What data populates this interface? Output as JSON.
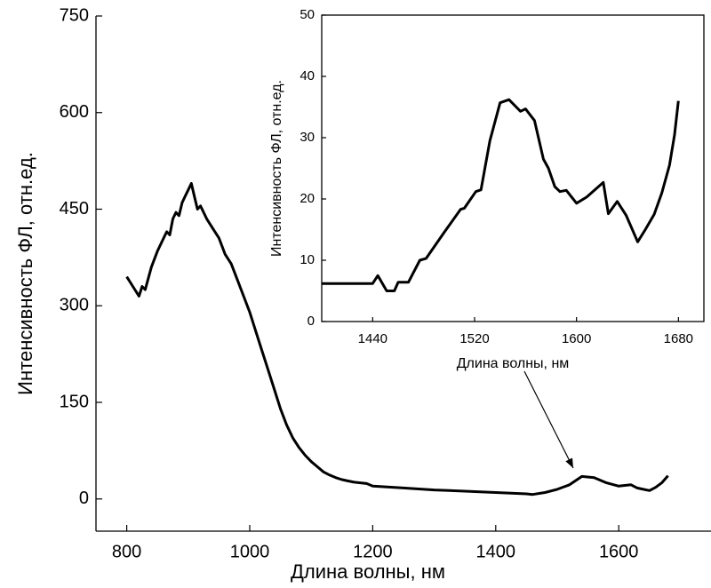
{
  "chart_data": [
    {
      "type": "line",
      "x_label": "Длина волны, нм",
      "y_label": "Интенсивность ФЛ, отн.ед.",
      "xlim": [
        750,
        1750
      ],
      "xticks": [
        800,
        1000,
        1200,
        1400,
        1600
      ],
      "ylim": [
        -50,
        750
      ],
      "yticks": [
        0,
        150,
        300,
        450,
        600,
        750
      ],
      "color": "#000000",
      "x": [
        800,
        810,
        820,
        825,
        830,
        840,
        850,
        860,
        865,
        870,
        875,
        880,
        885,
        890,
        895,
        900,
        905,
        910,
        915,
        920,
        930,
        940,
        950,
        960,
        970,
        980,
        990,
        1000,
        1010,
        1020,
        1030,
        1040,
        1050,
        1060,
        1070,
        1080,
        1090,
        1100,
        1110,
        1120,
        1130,
        1140,
        1150,
        1160,
        1170,
        1180,
        1190,
        1200,
        1250,
        1300,
        1350,
        1400,
        1450,
        1460,
        1480,
        1500,
        1520,
        1540,
        1560,
        1580,
        1600,
        1620,
        1630,
        1640,
        1650,
        1660,
        1670,
        1680
      ],
      "values": [
        345,
        330,
        315,
        330,
        325,
        360,
        385,
        405,
        415,
        410,
        435,
        445,
        440,
        460,
        470,
        480,
        490,
        470,
        450,
        455,
        435,
        420,
        405,
        380,
        365,
        340,
        315,
        290,
        260,
        230,
        200,
        170,
        140,
        115,
        95,
        80,
        68,
        58,
        50,
        42,
        37,
        33,
        30,
        28,
        26,
        25,
        24,
        20,
        17,
        14,
        12,
        10,
        8,
        7,
        10,
        15,
        22,
        35,
        33,
        25,
        20,
        22,
        17,
        15,
        13,
        18,
        25,
        36
      ]
    },
    {
      "type": "line",
      "x_label": "Длина волны, нм",
      "y_label": "Интенсивность ФЛ, отн.ед.",
      "xlim": [
        1400,
        1700
      ],
      "xticks": [
        1440,
        1520,
        1600,
        1680
      ],
      "ylim": [
        0,
        50
      ],
      "yticks": [
        0,
        10,
        20,
        30,
        40,
        50
      ],
      "color": "#000000",
      "x": [
        1400,
        1440,
        1444,
        1451,
        1457,
        1460,
        1468,
        1477,
        1482,
        1496,
        1509,
        1512,
        1521,
        1525,
        1532,
        1540,
        1547,
        1556,
        1560,
        1567,
        1574,
        1578,
        1583,
        1587,
        1592,
        1600,
        1608,
        1621,
        1625,
        1632,
        1639,
        1648,
        1654,
        1661,
        1667,
        1673,
        1677,
        1680
      ],
      "values": [
        6.2,
        6.2,
        7.5,
        5,
        5,
        6.4,
        6.4,
        10,
        10.3,
        14.5,
        18.3,
        18.5,
        21.2,
        21.5,
        29.5,
        35.7,
        36.2,
        34.3,
        34.7,
        32.8,
        26.5,
        25,
        22,
        21.2,
        21.4,
        19.3,
        20.3,
        22.7,
        17.6,
        19.6,
        17.3,
        13,
        15,
        17.5,
        21,
        25.5,
        30.5,
        36
      ]
    }
  ]
}
